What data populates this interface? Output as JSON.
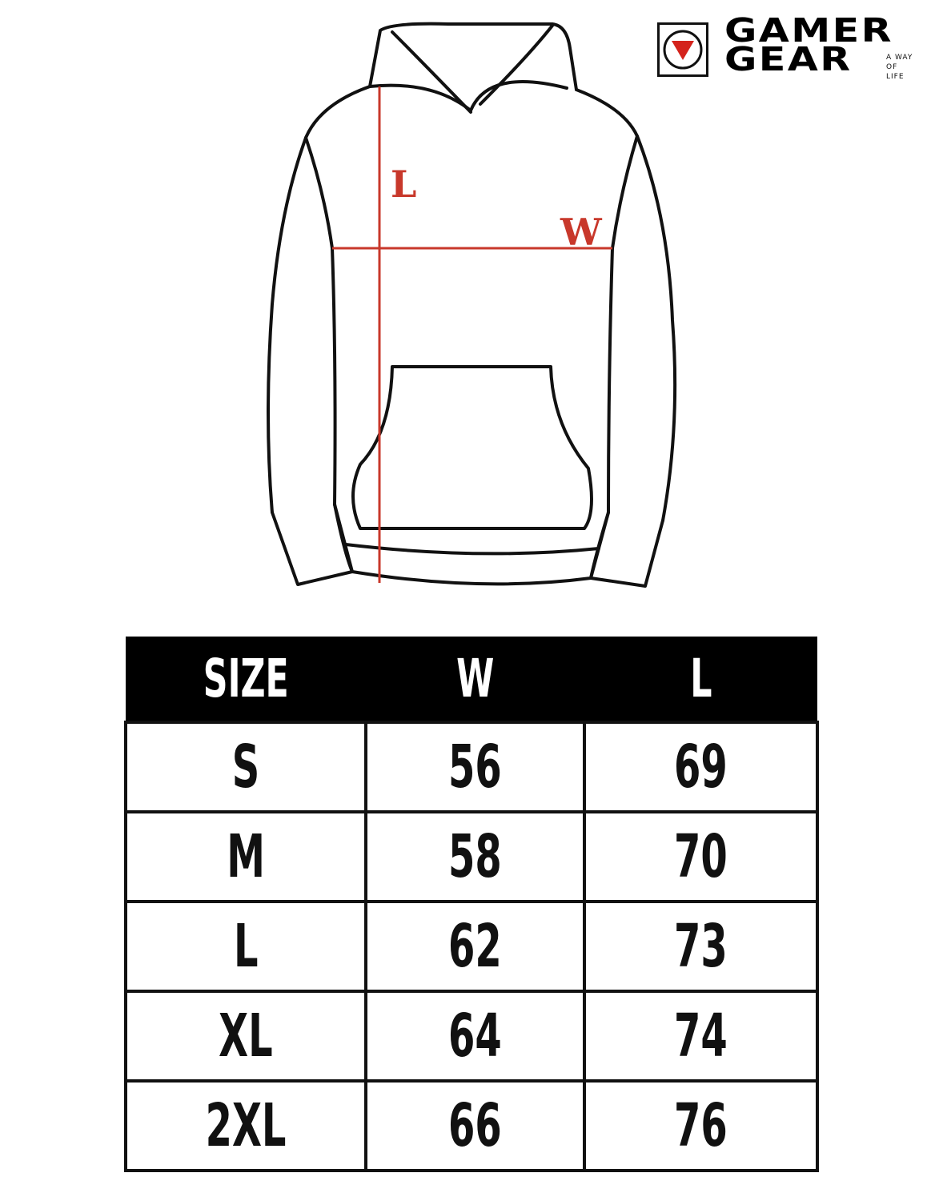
{
  "logo": {
    "brand_line1": "GAMER",
    "brand_line2": "GEAR",
    "tagline": [
      "A WAY",
      "OF",
      "LIFE"
    ],
    "accent_color": "#d4231c"
  },
  "diagram": {
    "length_label": "L",
    "width_label": "W",
    "measure_color": "#c8382b"
  },
  "size_table": {
    "headers": [
      "SIZE",
      "W",
      "L"
    ],
    "rows": [
      [
        "S",
        "56",
        "69"
      ],
      [
        "M",
        "58",
        "70"
      ],
      [
        "L",
        "62",
        "73"
      ],
      [
        "XL",
        "64",
        "74"
      ],
      [
        "2XL",
        "66",
        "76"
      ]
    ]
  }
}
